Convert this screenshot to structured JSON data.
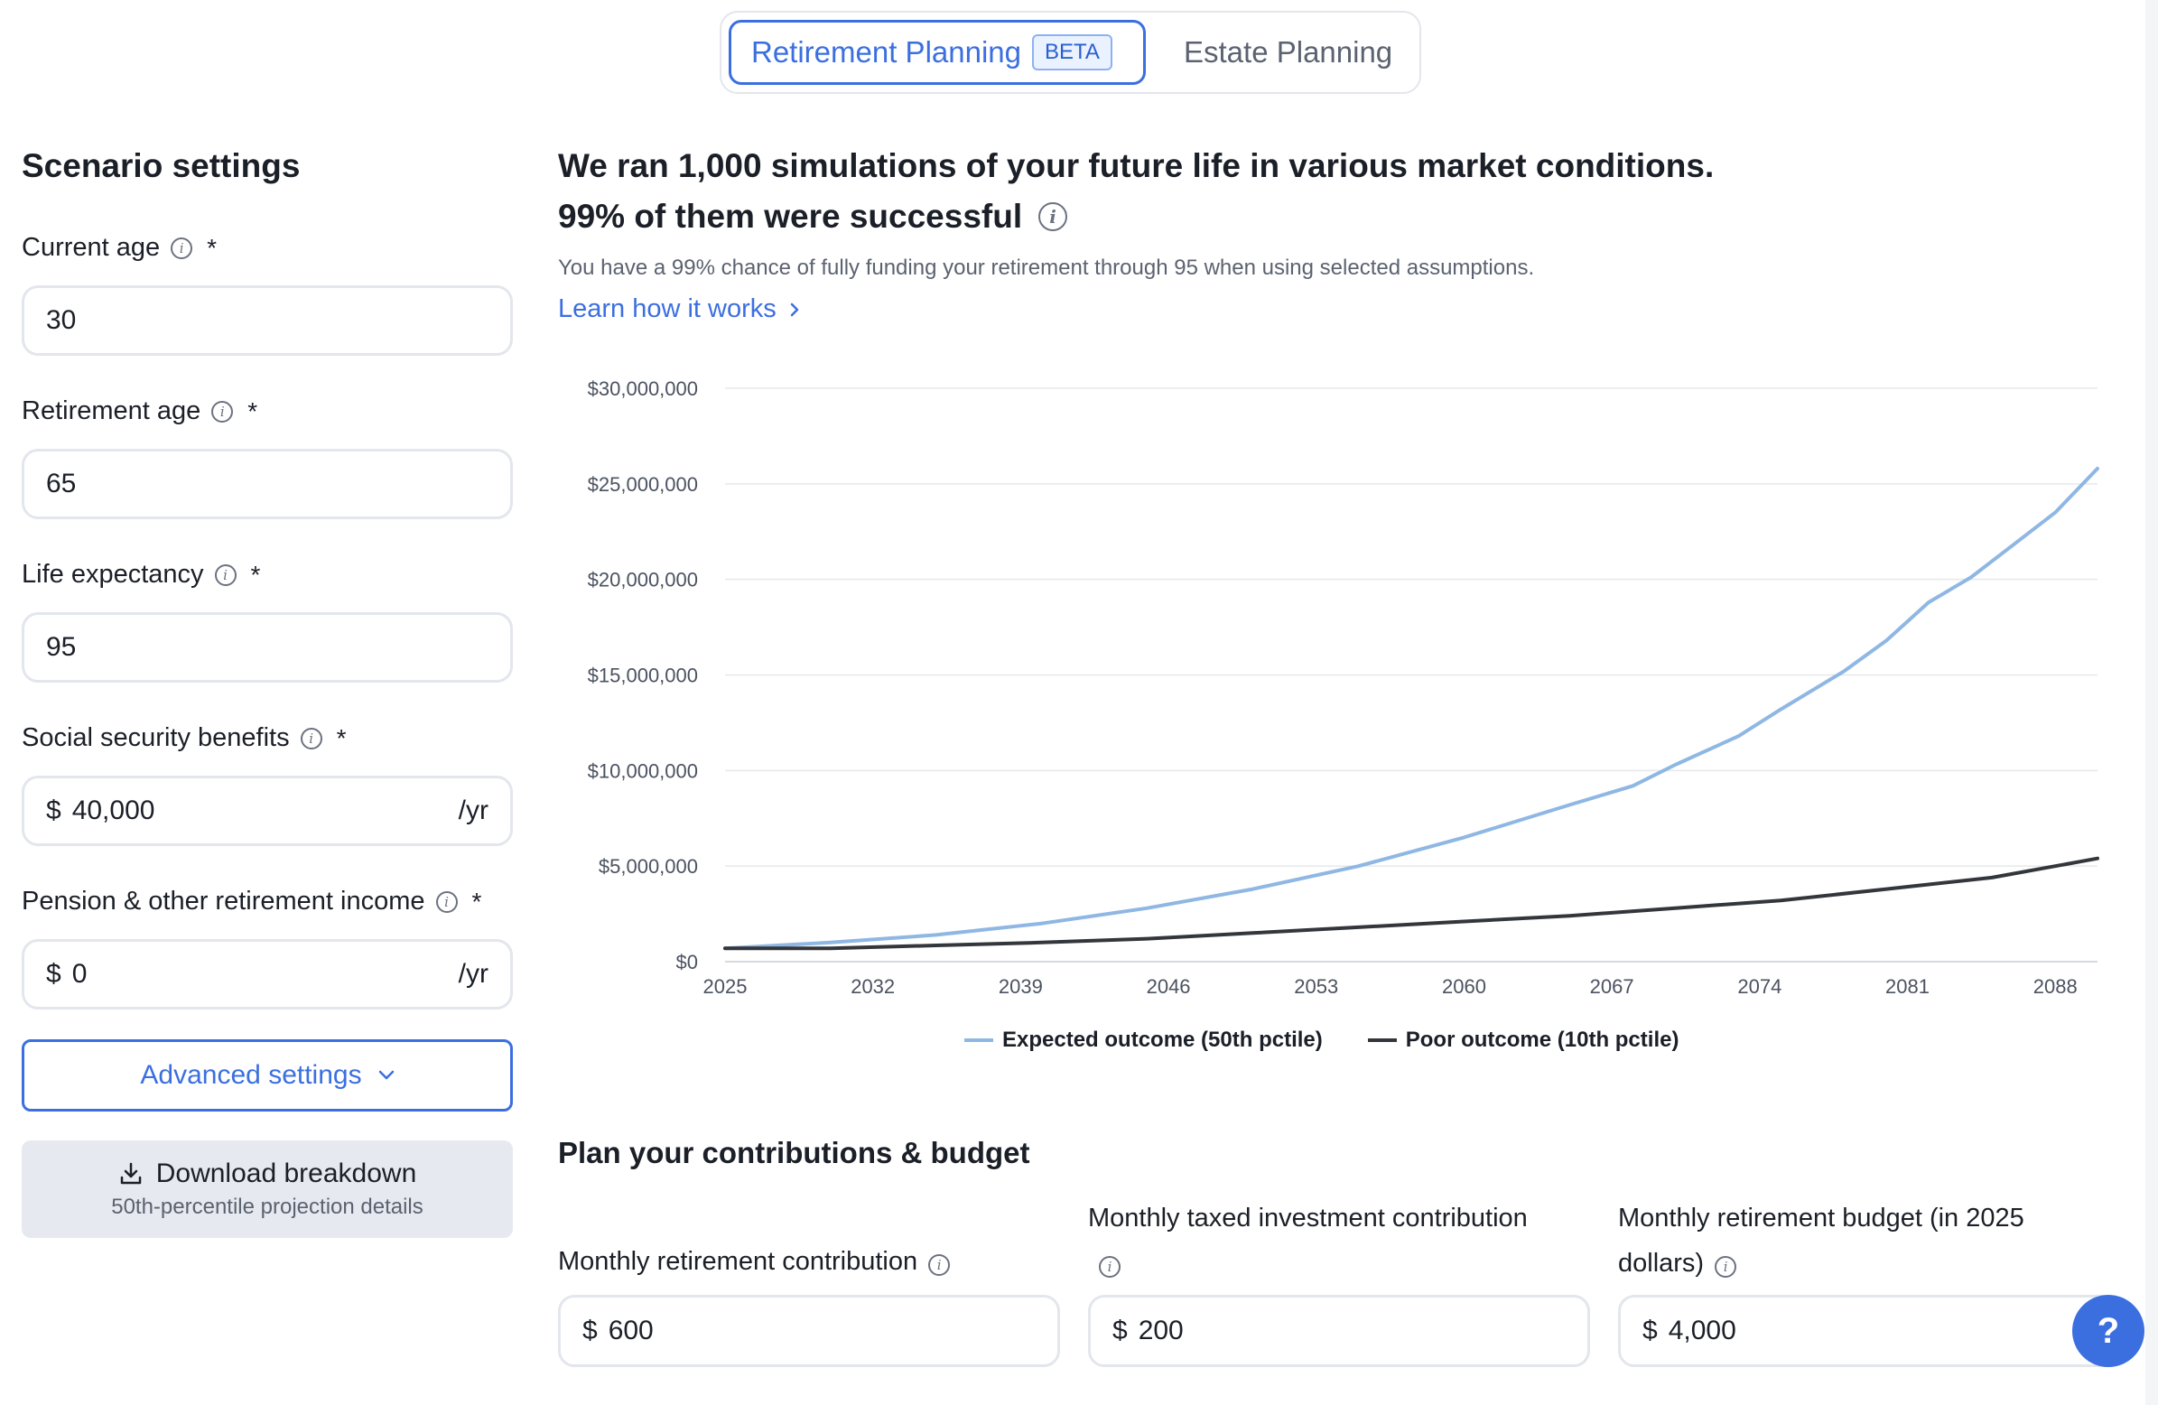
{
  "tabs": {
    "retirement_label": "Retirement Planning",
    "retirement_badge": "BETA",
    "estate_label": "Estate Planning"
  },
  "scenario": {
    "title": "Scenario settings",
    "current_age": {
      "label": "Current age",
      "required": "*",
      "value": "30"
    },
    "retirement_age": {
      "label": "Retirement age",
      "required": "*",
      "value": "65"
    },
    "life_expectancy": {
      "label": "Life expectancy",
      "required": "*",
      "value": "95"
    },
    "social_security": {
      "label": "Social security benefits",
      "required": "*",
      "prefix": "$",
      "value": "40,000",
      "suffix": "/yr"
    },
    "pension": {
      "label": "Pension & other retirement income",
      "required": "*",
      "prefix": "$",
      "value": "0",
      "suffix": "/yr"
    },
    "advanced_label": "Advanced settings",
    "download_label": "Download breakdown",
    "download_sub": "50th-percentile projection details"
  },
  "results": {
    "headline1": "We ran 1,000 simulations of your future life in various market conditions.",
    "headline2": "99% of them were successful",
    "subtext": "You have a 99% chance of fully funding your retirement through 95 when using selected assumptions.",
    "learn_link": "Learn how it works"
  },
  "chart_data": {
    "type": "line",
    "x_ticks": [
      "2025",
      "2032",
      "2039",
      "2046",
      "2053",
      "2060",
      "2067",
      "2074",
      "2081",
      "2088"
    ],
    "y_ticks": [
      "$0",
      "$5,000,000",
      "$10,000,000",
      "$15,000,000",
      "$20,000,000",
      "$25,000,000",
      "$30,000,000"
    ],
    "ylim": [
      0,
      30000000
    ],
    "xlim": [
      2025,
      2090
    ],
    "grid": "horizontal",
    "legend_position": "bottom-center",
    "series": [
      {
        "name": "Expected outcome (50th pctile)",
        "color": "#8fb7e3",
        "x": [
          2025,
          2030,
          2035,
          2040,
          2045,
          2050,
          2055,
          2060,
          2065,
          2068,
          2070,
          2073,
          2075,
          2078,
          2080,
          2082,
          2084,
          2086,
          2088,
          2090
        ],
        "values": [
          700000,
          1000000,
          1400000,
          2000000,
          2800000,
          3800000,
          5000000,
          6500000,
          8200000,
          9200000,
          10300000,
          11800000,
          13200000,
          15200000,
          16800000,
          18800000,
          20100000,
          21800000,
          23500000,
          25800000
        ]
      },
      {
        "name": "Poor outcome (10th pctile)",
        "color": "#33363b",
        "x": [
          2025,
          2030,
          2035,
          2040,
          2045,
          2050,
          2055,
          2060,
          2065,
          2070,
          2075,
          2080,
          2085,
          2088,
          2090
        ],
        "values": [
          700000,
          700000,
          850000,
          1000000,
          1200000,
          1500000,
          1800000,
          2100000,
          2400000,
          2800000,
          3200000,
          3800000,
          4400000,
          5000000,
          5400000
        ]
      }
    ]
  },
  "plan": {
    "title": "Plan your contributions & budget",
    "fields": [
      {
        "label": "Monthly retirement contribution",
        "prefix": "$",
        "value": "600"
      },
      {
        "label": "Monthly taxed investment contribution",
        "prefix": "$",
        "value": "200"
      },
      {
        "label": "Monthly retirement budget (in 2025 dollars)",
        "prefix": "$",
        "value": "4,000"
      }
    ]
  },
  "help_label": "?"
}
